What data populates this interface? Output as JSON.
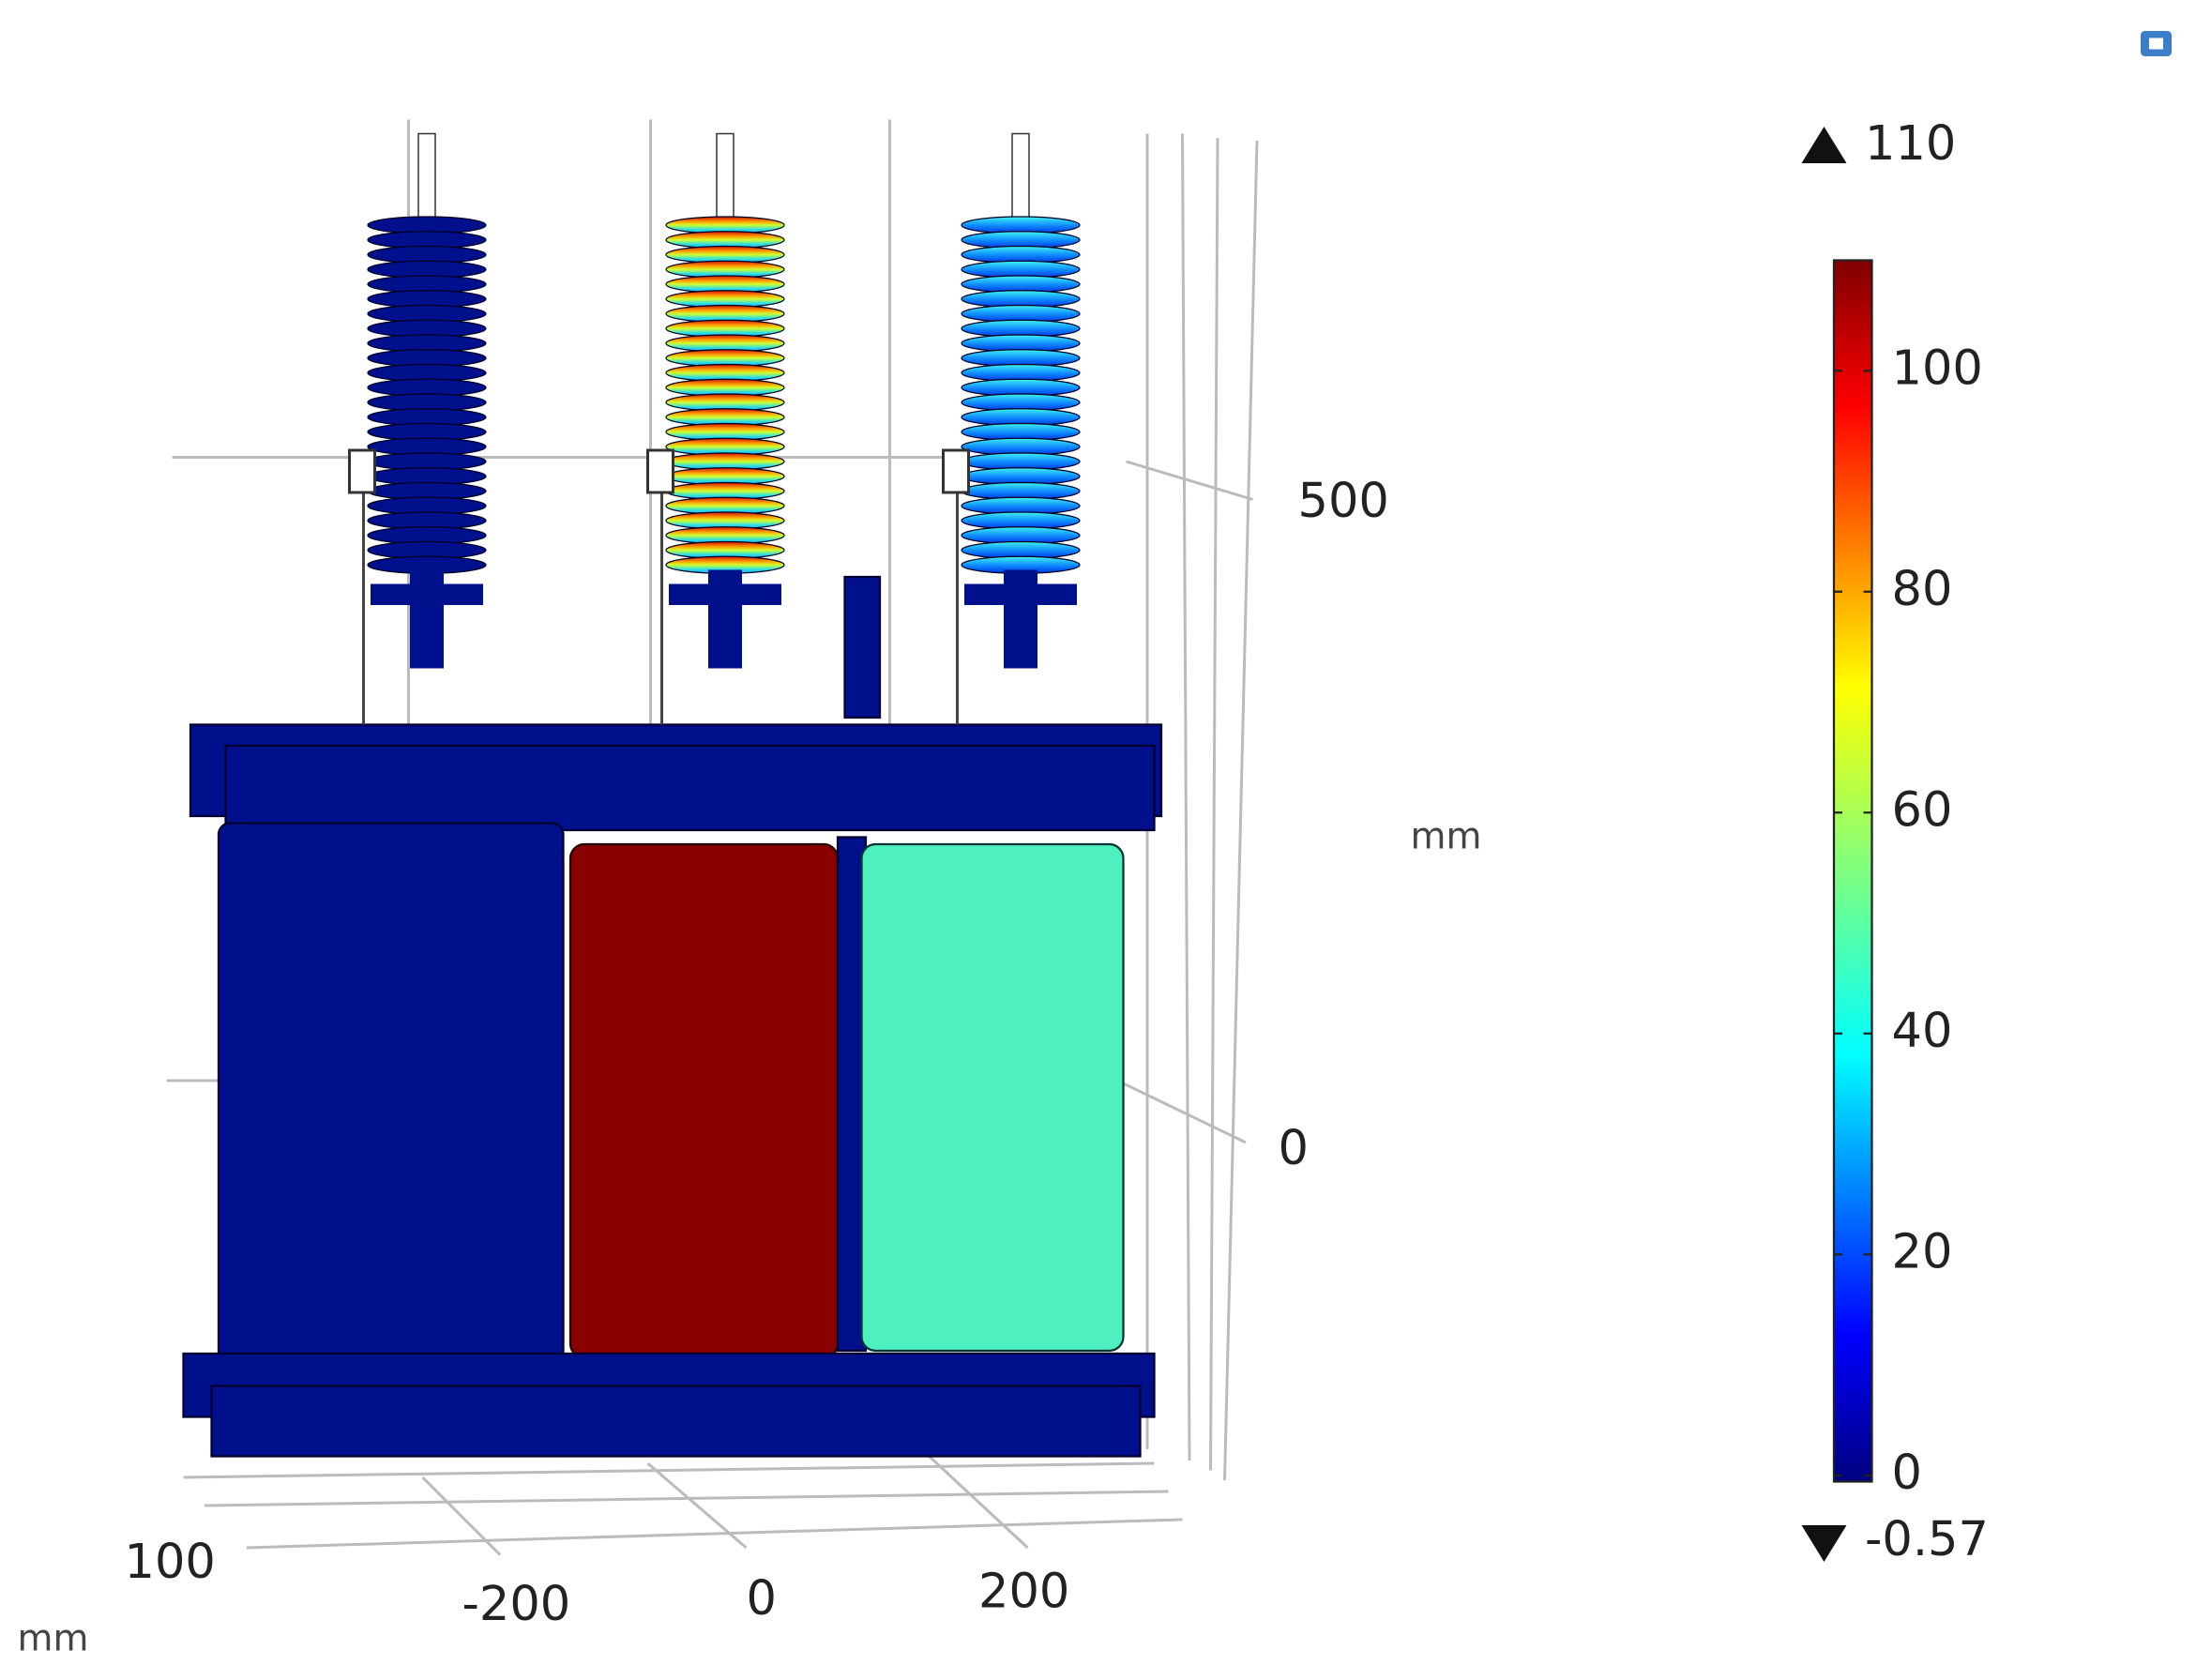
{
  "colorbar": {
    "range": [
      -0.57,
      110
    ],
    "ticks": [
      0,
      20,
      40,
      60,
      80,
      100
    ]
  },
  "axes": {
    "z": {
      "ticks": [
        "500",
        "0"
      ],
      "unit": "mm"
    },
    "y": {
      "ticks": [
        "100"
      ],
      "unit": "mm"
    },
    "x": {
      "ticks": [
        "-200",
        "0",
        "200"
      ]
    }
  }
}
